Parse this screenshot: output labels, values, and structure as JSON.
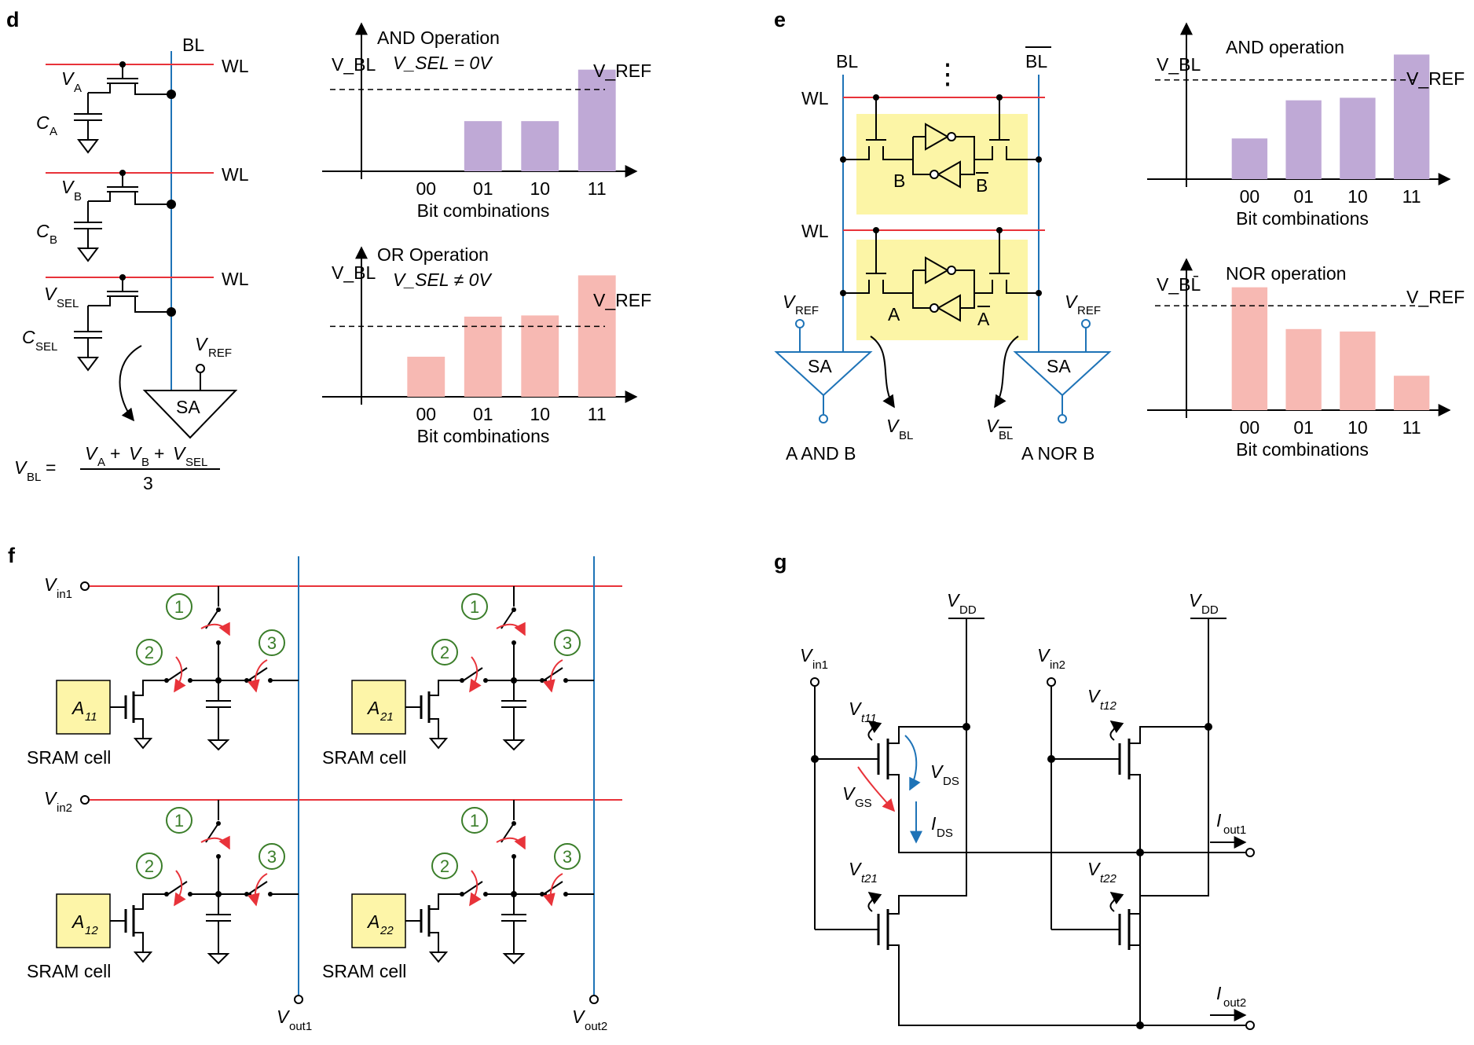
{
  "panels": {
    "d": "d",
    "e": "e",
    "f": "f",
    "g": "g"
  },
  "colors": {
    "purple": "#bfa9d6",
    "pink": "#f7b9b3",
    "wordline": "#e8333a",
    "bitline": "#1e73b7",
    "highlight": "#fcf5a6",
    "step": "#3b7e2a"
  },
  "labels": {
    "BL": "BL",
    "WL": "WL",
    "SA": "SA",
    "V": "V",
    "A": "A",
    "B": "B",
    "SEL": "SEL",
    "REF": "REF",
    "C": "C",
    "eq_lhs_sub": "BL",
    "eq_eq": "=",
    "eq_plus": "+",
    "eq_den": "3",
    "dots": "⋮",
    "and_out": "A AND B",
    "nor_out": "A NOR B",
    "sram": "SRAM cell",
    "vin1": "in1",
    "vin2": "in2",
    "vout1": "out1",
    "vout2": "out2",
    "a11": "11",
    "a21": "21",
    "a12": "12",
    "a22": "22",
    "step1": "1",
    "step2": "2",
    "step3": "3",
    "vdd": "DD",
    "t11": "t11",
    "t12": "t12",
    "t21": "t21",
    "t22": "t22",
    "gs": "GS",
    "ds": "DS",
    "iout1": "out1",
    "iout2": "out2",
    "I": "I"
  },
  "chart_data": [
    {
      "type": "bar",
      "panel": "d",
      "title": "AND Operation",
      "subtitle": "V_SEL = 0V",
      "xlabel": "Bit combinations",
      "ylabel": "V_BL",
      "reference": "V_REF",
      "reference_value": 0.62,
      "categories": [
        "00",
        "01",
        "10",
        "11"
      ],
      "values": [
        0,
        0.38,
        0.38,
        0.77
      ],
      "ylim": [
        0,
        1
      ],
      "color": "#bfa9d6"
    },
    {
      "type": "bar",
      "panel": "d",
      "title": "OR Operation",
      "subtitle": "V_SEL ≠ 0V",
      "xlabel": "Bit combinations",
      "ylabel": "V_BL",
      "reference": "V_REF",
      "reference_value": 0.58,
      "categories": [
        "00",
        "01",
        "10",
        "11"
      ],
      "values": [
        0.33,
        0.66,
        0.67,
        1.0
      ],
      "ylim": [
        0,
        1.1
      ],
      "color": "#f7b9b3"
    },
    {
      "type": "bar",
      "panel": "e",
      "title": "AND operation",
      "xlabel": "Bit combinations",
      "ylabel": "V_BL",
      "reference": "V_REF",
      "reference_value": 0.78,
      "categories": [
        "00",
        "01",
        "10",
        "11"
      ],
      "values": [
        0.32,
        0.62,
        0.64,
        0.98
      ],
      "ylim": [
        0,
        1.1
      ],
      "color": "#bfa9d6"
    },
    {
      "type": "bar",
      "panel": "e",
      "title": "NOR operation",
      "xlabel": "Bit combinations",
      "ylabel": "V_BL̄",
      "reference": "V_REF",
      "reference_value": 0.85,
      "categories": [
        "00",
        "01",
        "10",
        "11"
      ],
      "values": [
        1.0,
        0.66,
        0.64,
        0.28
      ],
      "ylim": [
        0,
        1.1
      ],
      "color": "#f7b9b3"
    }
  ]
}
